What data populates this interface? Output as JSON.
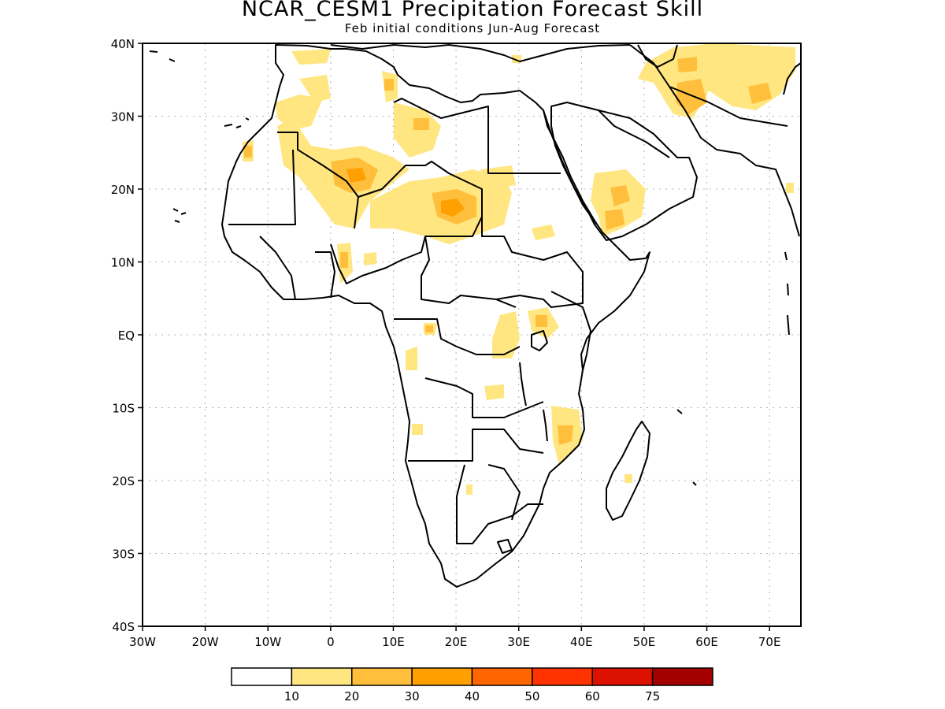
{
  "title": "NCAR_CESM1 Precipitation Forecast Skill",
  "subtitle": "Feb initial conditions  Jun-Aug Forecast",
  "map": {
    "lon_range": [
      -30,
      75
    ],
    "lat_range": [
      -40,
      40
    ],
    "lat_labels": [
      "40N",
      "30N",
      "20N",
      "10N",
      "EQ",
      "10S",
      "20S",
      "30S",
      "40S"
    ],
    "lon_labels": [
      "30W",
      "20W",
      "10W",
      "0",
      "10E",
      "20E",
      "30E",
      "40E",
      "50E",
      "60E",
      "70E"
    ],
    "colors": {
      "land_outline": "#000000",
      "grid": "#b0b0b0"
    }
  },
  "colorbar": {
    "colors": [
      "#ffffff",
      "#ffe680",
      "#ffbf3c",
      "#ff9f00",
      "#ff6600",
      "#ff3300",
      "#dd1100",
      "#a50000"
    ],
    "labels": [
      "10",
      "20",
      "30",
      "40",
      "50",
      "60",
      "75"
    ]
  },
  "skill_regions": [
    {
      "name": "west-sahara-core",
      "level": 2
    },
    {
      "name": "sudan-chad-core",
      "level": 2
    },
    {
      "name": "arabia",
      "level": 1
    },
    {
      "name": "iran",
      "level": 2
    },
    {
      "name": "mozambique",
      "level": 1
    }
  ]
}
